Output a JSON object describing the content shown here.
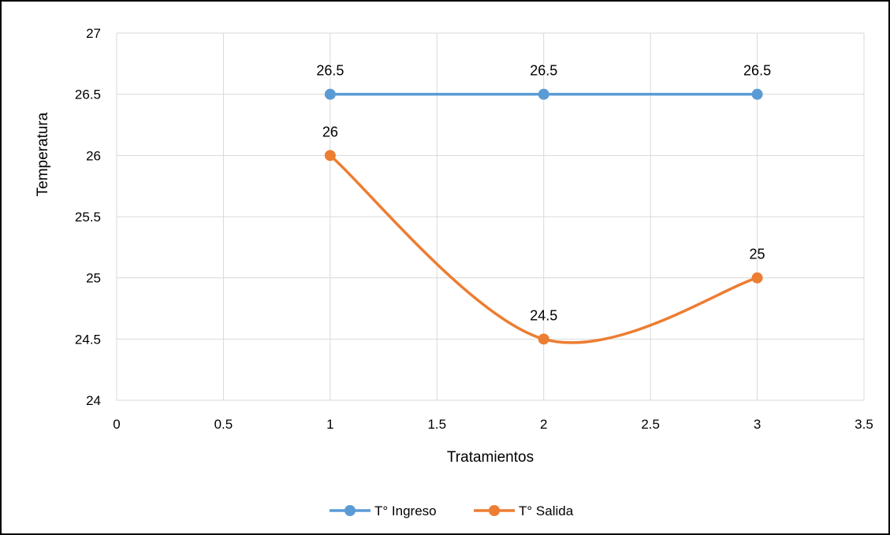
{
  "chart_data": {
    "type": "line",
    "title": "",
    "xlabel": "Tratamientos",
    "ylabel": "Temperatura",
    "xlim": [
      0,
      3.5
    ],
    "ylim": [
      24,
      27
    ],
    "x_ticks": [
      "0",
      "0.5",
      "1",
      "1.5",
      "2",
      "2.5",
      "3",
      "3.5"
    ],
    "y_ticks": [
      "24",
      "24.5",
      "25",
      "25.5",
      "26",
      "26.5",
      "27"
    ],
    "grid": true,
    "legend_position": "bottom",
    "series": [
      {
        "name": "T° Ingreso",
        "color": "#5B9BD5",
        "smooth": false,
        "x": [
          1,
          2,
          3
        ],
        "y": [
          26.5,
          26.5,
          26.5
        ],
        "labels": [
          "26.5",
          "26.5",
          "26.5"
        ]
      },
      {
        "name": "T° Salida",
        "color": "#ED7D31",
        "smooth": true,
        "x": [
          1,
          2,
          3
        ],
        "y": [
          26,
          24.5,
          25
        ],
        "labels": [
          "26",
          "24.5",
          "25"
        ]
      }
    ]
  }
}
